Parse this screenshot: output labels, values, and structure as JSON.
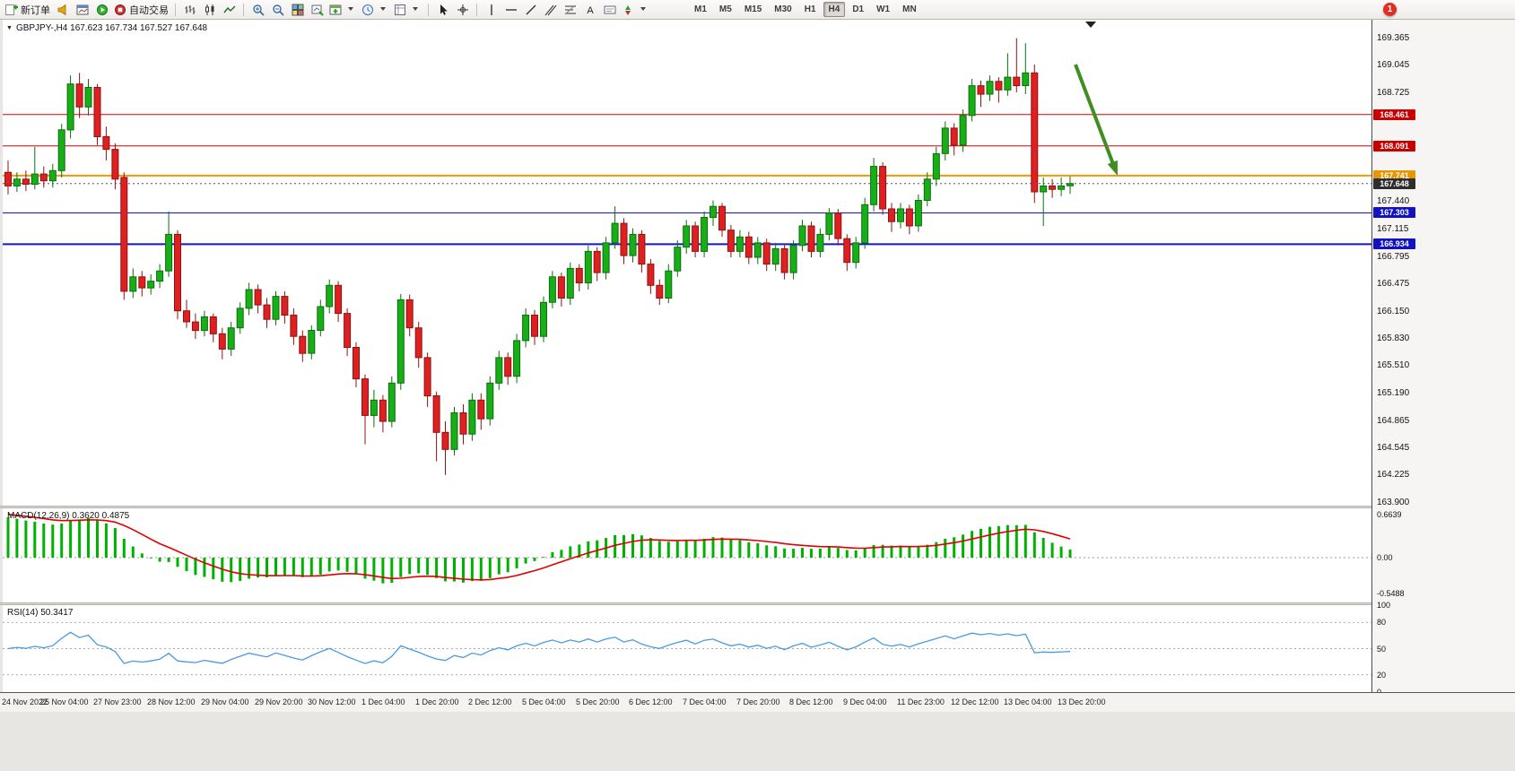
{
  "toolbar": {
    "new_order": "新订单",
    "auto_trading": "自动交易",
    "timeframes": [
      "M1",
      "M5",
      "M15",
      "M30",
      "H1",
      "H4",
      "D1",
      "W1",
      "MN"
    ],
    "active_timeframe": "H4",
    "notification_badge": "1"
  },
  "chart": {
    "title": "GBPJPY-,H4 167.623 167.734 167.527 167.648",
    "symbol": "GBPJPY-",
    "timeframe": "H4",
    "levels": [
      {
        "price": 168.461,
        "label": "168.461",
        "color": "#d40000",
        "label_bg": "#c80000",
        "width": 1
      },
      {
        "price": 168.091,
        "label": "168.091",
        "color": "#d40000",
        "label_bg": "#c80000",
        "width": 1
      },
      {
        "price": 167.741,
        "label": "167.741",
        "color": "#ee9b00",
        "label_bg": "#e89600",
        "width": 2
      },
      {
        "price": 167.648,
        "label": "167.648",
        "color": "#555555",
        "label_bg": "#2e2e2e",
        "width": 1,
        "dashed": true
      },
      {
        "price": 167.303,
        "label": "167.303",
        "color": "#1414cc",
        "label_bg": "#1212c0",
        "width": 1
      },
      {
        "price": 166.934,
        "label": "166.934",
        "color": "#1414cc",
        "label_bg": "#1212c0",
        "width": 2
      }
    ]
  },
  "chart_data": {
    "type": "candlestick",
    "title": "GBPJPY- H4",
    "ohlc_display": {
      "open": 167.623,
      "high": 167.734,
      "low": 167.527,
      "close": 167.648
    },
    "y_axis": {
      "min": 163.858,
      "max": 169.576,
      "tick_labels": [
        169.365,
        169.045,
        168.725,
        167.44,
        167.115,
        166.795,
        166.475,
        166.15,
        165.83,
        165.51,
        165.19,
        164.865,
        164.545,
        164.225,
        163.9
      ]
    },
    "x_axis_labels": [
      "24 Nov 2022",
      "25 Nov 04:00",
      "27 Nov 23:00",
      "28 Nov 12:00",
      "29 Nov 04:00",
      "29 Nov 20:00",
      "30 Nov 12:00",
      "1 Dec 04:00",
      "1 Dec 20:00",
      "2 Dec 12:00",
      "5 Dec 04:00",
      "5 Dec 20:00",
      "6 Dec 12:00",
      "7 Dec 04:00",
      "7 Dec 20:00",
      "8 Dec 12:00",
      "9 Dec 04:00",
      "11 Dec 23:00",
      "12 Dec 12:00",
      "13 Dec 04:00",
      "13 Dec 20:00"
    ],
    "up_color": "#18ae18",
    "down_color": "#df2020",
    "candles": [
      [
        167.78,
        167.92,
        167.52,
        167.62
      ],
      [
        167.62,
        167.78,
        167.55,
        167.7
      ],
      [
        167.7,
        167.8,
        167.56,
        167.64
      ],
      [
        167.64,
        168.08,
        167.58,
        167.76
      ],
      [
        167.76,
        167.85,
        167.6,
        167.68
      ],
      [
        167.68,
        167.88,
        167.6,
        167.8
      ],
      [
        167.8,
        168.35,
        167.72,
        168.28
      ],
      [
        168.28,
        168.92,
        168.18,
        168.82
      ],
      [
        168.82,
        168.95,
        168.42,
        168.55
      ],
      [
        168.55,
        168.88,
        168.45,
        168.78
      ],
      [
        168.78,
        168.82,
        168.1,
        168.2
      ],
      [
        168.2,
        168.32,
        167.92,
        168.05
      ],
      [
        168.05,
        168.12,
        167.58,
        167.7
      ],
      [
        167.72,
        167.78,
        166.28,
        166.38
      ],
      [
        166.38,
        166.65,
        166.3,
        166.55
      ],
      [
        166.55,
        166.62,
        166.32,
        166.42
      ],
      [
        166.42,
        166.58,
        166.34,
        166.5
      ],
      [
        166.5,
        166.7,
        166.42,
        166.62
      ],
      [
        166.62,
        167.32,
        166.55,
        167.05
      ],
      [
        167.05,
        167.1,
        166.05,
        166.15
      ],
      [
        166.15,
        166.28,
        165.95,
        166.02
      ],
      [
        166.02,
        166.12,
        165.82,
        165.92
      ],
      [
        165.92,
        166.15,
        165.85,
        166.08
      ],
      [
        166.08,
        166.12,
        165.78,
        165.88
      ],
      [
        165.88,
        165.95,
        165.58,
        165.7
      ],
      [
        165.7,
        166.02,
        165.62,
        165.95
      ],
      [
        165.95,
        166.25,
        165.88,
        166.18
      ],
      [
        166.18,
        166.48,
        166.1,
        166.4
      ],
      [
        166.4,
        166.46,
        166.12,
        166.22
      ],
      [
        166.22,
        166.3,
        165.95,
        166.05
      ],
      [
        166.05,
        166.38,
        165.98,
        166.32
      ],
      [
        166.32,
        166.38,
        166.0,
        166.1
      ],
      [
        166.1,
        166.18,
        165.75,
        165.85
      ],
      [
        165.85,
        165.92,
        165.55,
        165.65
      ],
      [
        165.65,
        165.98,
        165.58,
        165.92
      ],
      [
        165.92,
        166.28,
        165.85,
        166.2
      ],
      [
        166.2,
        166.52,
        166.12,
        166.45
      ],
      [
        166.45,
        166.5,
        166.02,
        166.12
      ],
      [
        166.12,
        166.18,
        165.62,
        165.72
      ],
      [
        165.72,
        165.78,
        165.25,
        165.35
      ],
      [
        165.35,
        165.4,
        164.58,
        164.92
      ],
      [
        164.92,
        165.22,
        164.78,
        165.1
      ],
      [
        165.1,
        165.16,
        164.72,
        164.85
      ],
      [
        164.85,
        165.38,
        164.78,
        165.3
      ],
      [
        165.3,
        166.35,
        165.22,
        166.28
      ],
      [
        166.28,
        166.34,
        165.85,
        165.95
      ],
      [
        165.95,
        166.02,
        165.48,
        165.6
      ],
      [
        165.6,
        165.66,
        165.02,
        165.15
      ],
      [
        165.15,
        165.2,
        164.38,
        164.72
      ],
      [
        164.72,
        164.85,
        164.22,
        164.52
      ],
      [
        164.52,
        165.02,
        164.45,
        164.95
      ],
      [
        164.95,
        165.05,
        164.58,
        164.7
      ],
      [
        164.7,
        165.18,
        164.62,
        165.1
      ],
      [
        165.1,
        165.18,
        164.75,
        164.88
      ],
      [
        164.88,
        165.38,
        164.8,
        165.3
      ],
      [
        165.3,
        165.68,
        165.22,
        165.6
      ],
      [
        165.6,
        165.66,
        165.28,
        165.38
      ],
      [
        165.38,
        165.88,
        165.3,
        165.8
      ],
      [
        165.8,
        166.18,
        165.72,
        166.1
      ],
      [
        166.1,
        166.16,
        165.75,
        165.85
      ],
      [
        165.85,
        166.32,
        165.78,
        166.25
      ],
      [
        166.25,
        166.62,
        166.18,
        166.55
      ],
      [
        166.55,
        166.6,
        166.2,
        166.3
      ],
      [
        166.3,
        166.72,
        166.22,
        166.65
      ],
      [
        166.65,
        166.7,
        166.38,
        166.48
      ],
      [
        166.48,
        166.92,
        166.4,
        166.85
      ],
      [
        166.85,
        166.9,
        166.5,
        166.6
      ],
      [
        166.6,
        167.02,
        166.52,
        166.95
      ],
      [
        166.95,
        167.38,
        166.88,
        167.18
      ],
      [
        167.18,
        167.24,
        166.7,
        166.8
      ],
      [
        166.8,
        167.12,
        166.72,
        167.05
      ],
      [
        167.05,
        167.1,
        166.6,
        166.7
      ],
      [
        166.7,
        166.76,
        166.35,
        166.45
      ],
      [
        166.45,
        166.52,
        166.22,
        166.3
      ],
      [
        166.3,
        166.7,
        166.24,
        166.62
      ],
      [
        166.62,
        166.98,
        166.55,
        166.9
      ],
      [
        166.9,
        167.22,
        166.82,
        167.15
      ],
      [
        167.15,
        167.2,
        166.78,
        166.85
      ],
      [
        166.85,
        167.32,
        166.78,
        167.25
      ],
      [
        167.25,
        167.45,
        167.15,
        167.38
      ],
      [
        167.38,
        167.42,
        167.02,
        167.1
      ],
      [
        167.1,
        167.16,
        166.78,
        166.85
      ],
      [
        166.85,
        167.1,
        166.78,
        167.02
      ],
      [
        167.02,
        167.08,
        166.7,
        166.78
      ],
      [
        166.78,
        167.02,
        166.7,
        166.95
      ],
      [
        166.95,
        167.0,
        166.62,
        166.7
      ],
      [
        166.7,
        166.95,
        166.62,
        166.88
      ],
      [
        166.88,
        166.94,
        166.52,
        166.6
      ],
      [
        166.6,
        166.98,
        166.52,
        166.92
      ],
      [
        166.92,
        167.22,
        166.85,
        167.15
      ],
      [
        167.15,
        167.2,
        166.78,
        166.85
      ],
      [
        166.85,
        167.12,
        166.78,
        167.05
      ],
      [
        167.05,
        167.36,
        166.98,
        167.3
      ],
      [
        167.3,
        167.35,
        166.92,
        167.0
      ],
      [
        167.0,
        167.05,
        166.62,
        166.72
      ],
      [
        166.72,
        167.02,
        166.65,
        166.95
      ],
      [
        166.95,
        167.48,
        166.88,
        167.4
      ],
      [
        167.4,
        167.95,
        167.32,
        167.85
      ],
      [
        167.85,
        167.9,
        167.28,
        167.35
      ],
      [
        167.35,
        167.42,
        167.08,
        167.2
      ],
      [
        167.2,
        167.42,
        167.12,
        167.35
      ],
      [
        167.35,
        167.4,
        167.05,
        167.15
      ],
      [
        167.15,
        167.52,
        167.08,
        167.45
      ],
      [
        167.45,
        167.78,
        167.38,
        167.7
      ],
      [
        167.7,
        168.08,
        167.62,
        168.0
      ],
      [
        168.0,
        168.38,
        167.92,
        168.3
      ],
      [
        168.3,
        168.36,
        167.98,
        168.1
      ],
      [
        168.1,
        168.52,
        168.02,
        168.45
      ],
      [
        168.45,
        168.88,
        168.38,
        168.8
      ],
      [
        168.8,
        168.86,
        168.55,
        168.7
      ],
      [
        168.7,
        168.92,
        168.62,
        168.85
      ],
      [
        168.85,
        168.9,
        168.6,
        168.75
      ],
      [
        168.75,
        169.18,
        168.68,
        168.9
      ],
      [
        168.9,
        169.36,
        168.72,
        168.8
      ],
      [
        168.8,
        169.3,
        168.7,
        168.95
      ],
      [
        168.95,
        169.05,
        167.42,
        167.55
      ],
      [
        167.55,
        167.72,
        167.15,
        167.62
      ],
      [
        167.62,
        167.7,
        167.48,
        167.58
      ],
      [
        167.58,
        167.72,
        167.5,
        167.62
      ],
      [
        167.623,
        167.734,
        167.527,
        167.648
      ]
    ],
    "annotation_arrow": {
      "color": "#3e8e21",
      "direction": "down-right",
      "points_to_price": 167.741
    },
    "macd": {
      "label_text": "MACD(12,26,9) 0.3620 0.4875",
      "name": "MACD",
      "params": [
        12,
        26,
        9
      ],
      "macd_value": 0.362,
      "signal_value": 0.4875,
      "scale_labels": [
        "0.6639",
        "0.00",
        "-0.5488"
      ],
      "histogram_color": "#00b200",
      "signal_color": "#e00000"
    },
    "rsi": {
      "label_text": "RSI(14) 50.3417",
      "name": "RSI",
      "period": 14,
      "value": 50.3417,
      "scale_labels": [
        "100",
        "80",
        "50",
        "20",
        "0"
      ],
      "levels": [
        80,
        50,
        20
      ],
      "line_color": "#4a9ade"
    }
  }
}
